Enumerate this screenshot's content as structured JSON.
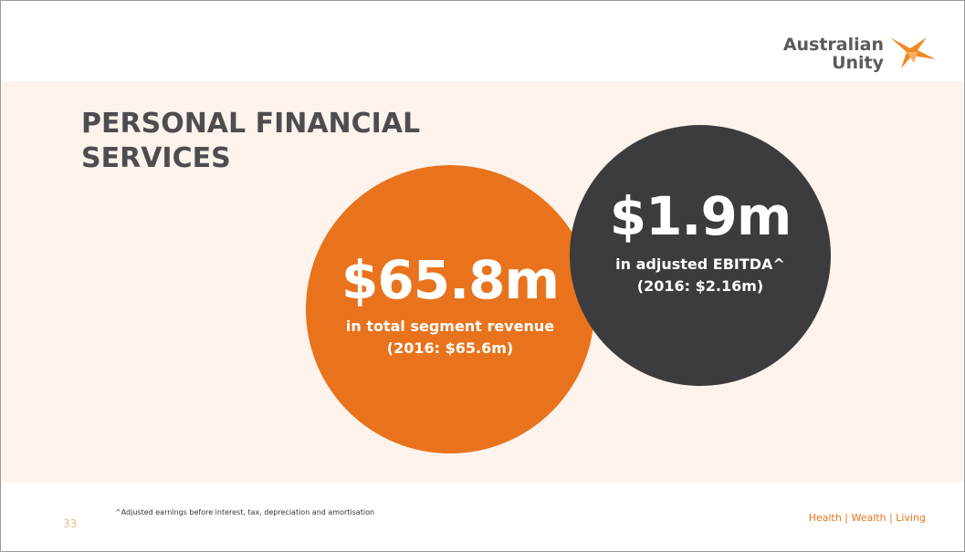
{
  "logo": {
    "lines": [
      "Australian",
      "Unity"
    ]
  },
  "title": "PERSONAL FINANCIAL SERVICES",
  "stats": [
    {
      "value": "$65.8m",
      "caption": "in total segment revenue",
      "prior": "(2016: $65.6m)"
    },
    {
      "value": "$1.9m",
      "caption": "in adjusted EBITDA^",
      "prior": "(2016: $2.16m)"
    }
  ],
  "footer": {
    "page": "33",
    "note": "^Adjusted earnings before interest, tax, depreciation and amortisation",
    "tagline": "Health | Wealth | Living"
  }
}
